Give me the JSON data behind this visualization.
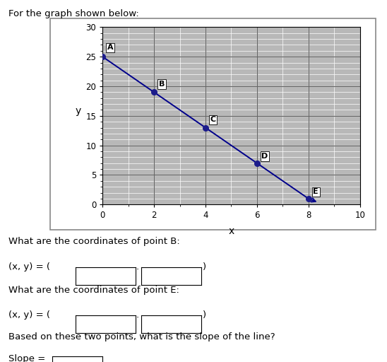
{
  "title": "For the graph shown below:",
  "points": {
    "A": [
      0,
      25
    ],
    "B": [
      2,
      19
    ],
    "C": [
      4,
      13
    ],
    "D": [
      6,
      7
    ],
    "E": [
      8,
      1
    ]
  },
  "line_color": "#00008B",
  "point_color": "#1C1C8B",
  "grid_bg_color": "#B8B8B8",
  "grid_minor_color": "#D0D0D0",
  "grid_major_color": "#888888",
  "xlabel": "x",
  "ylabel": "y",
  "xlim": [
    0,
    10
  ],
  "ylim": [
    0,
    30
  ],
  "xticks": [
    0,
    2,
    4,
    6,
    8,
    10
  ],
  "yticks": [
    0,
    5,
    10,
    15,
    20,
    25,
    30
  ],
  "question1": "What are the coordinates of point B:",
  "question2": "What are the coordinates of point E:",
  "question3": "Based on these two points, what is the slope of the line?",
  "label_slope": "Slope =",
  "label_xy": "(x, y) = ("
}
